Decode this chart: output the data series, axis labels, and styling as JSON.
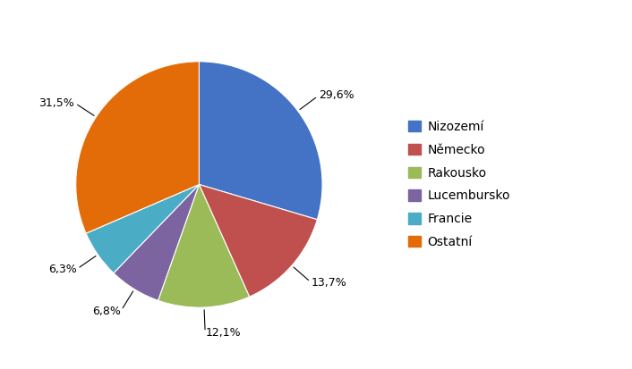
{
  "labels": [
    "Nizozemí",
    "Německo",
    "Rakousko",
    "Lucembursko",
    "Francie",
    "Ostatní"
  ],
  "values": [
    29.6,
    13.7,
    12.1,
    6.8,
    6.3,
    31.5
  ],
  "colors": [
    "#4472c4",
    "#c0504d",
    "#9bbb59",
    "#7b64a0",
    "#4bacc6",
    "#e36c09"
  ],
  "pct_labels": [
    "29,6%",
    "13,7%",
    "12,1%",
    "6,8%",
    "6,3%",
    "31,5%"
  ],
  "startangle": 90,
  "figsize": [
    7.06,
    4.13
  ],
  "dpi": 100
}
